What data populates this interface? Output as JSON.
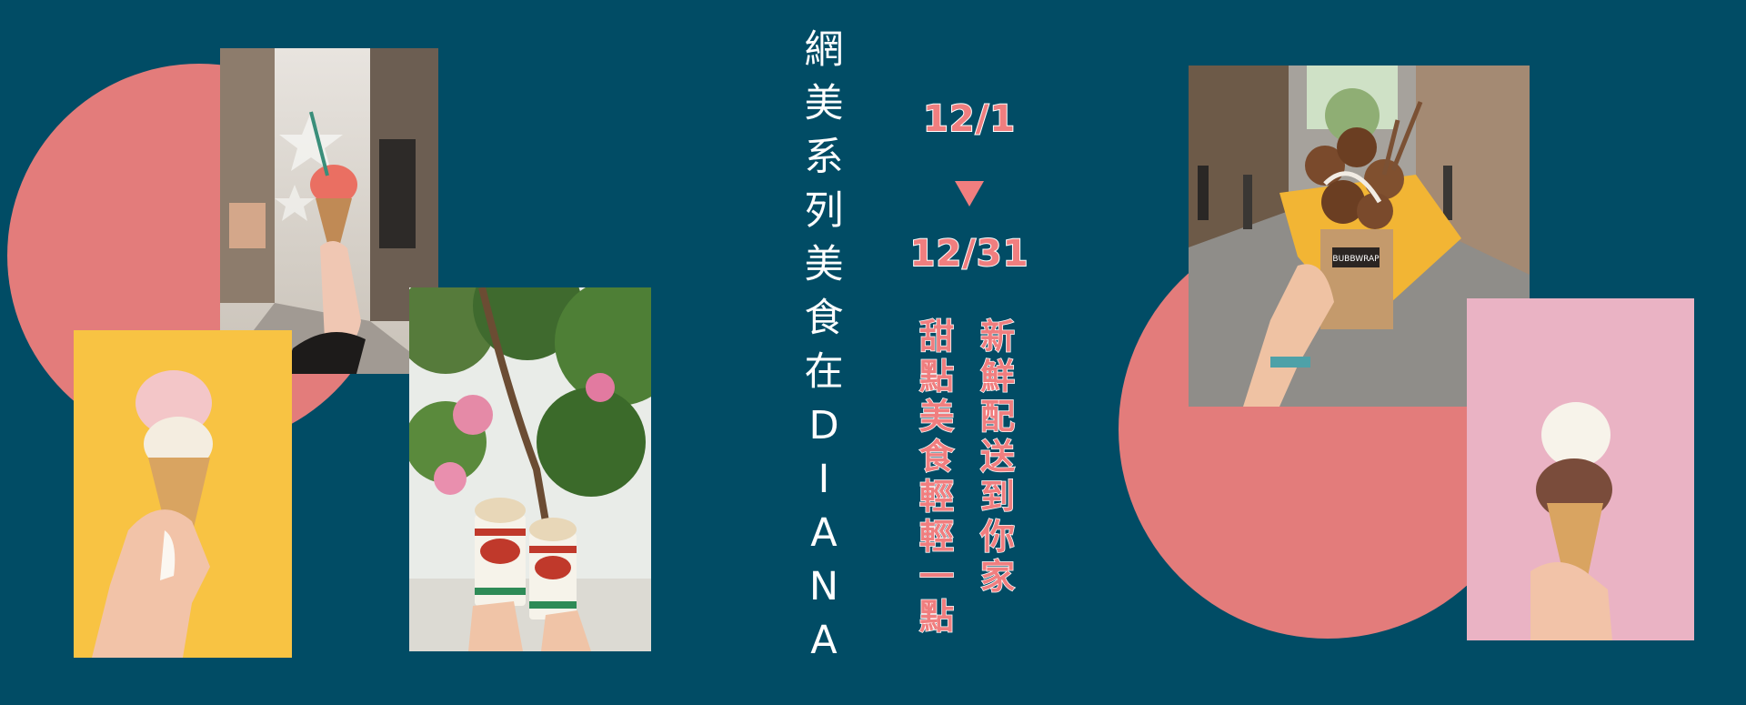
{
  "title_chars": [
    "網",
    "美",
    "系",
    "列",
    "美",
    "食",
    "在",
    "D",
    "I",
    "A",
    "N",
    "A"
  ],
  "date_start": "12/1",
  "date_end": "12/31",
  "tagline_right": [
    "新",
    "鮮",
    "配",
    "送",
    "到",
    "你",
    "家"
  ],
  "tagline_left": [
    "甜",
    "點",
    "美",
    "食",
    "輕",
    "輕",
    "一",
    "點"
  ],
  "photos": [
    {
      "icon": "ice-cream-street-photo"
    },
    {
      "icon": "ice-cream-yellow-photo"
    },
    {
      "icon": "milkshake-cups-photo"
    },
    {
      "icon": "bubble-waffle-photo",
      "brand_text": "BUBBWRAP"
    },
    {
      "icon": "ice-cream-pink-photo"
    }
  ],
  "colors": {
    "background": "#014c65",
    "accent_pink": "#e37c7b",
    "date_text": "#f07e7f",
    "title_text": "#ffffff"
  }
}
